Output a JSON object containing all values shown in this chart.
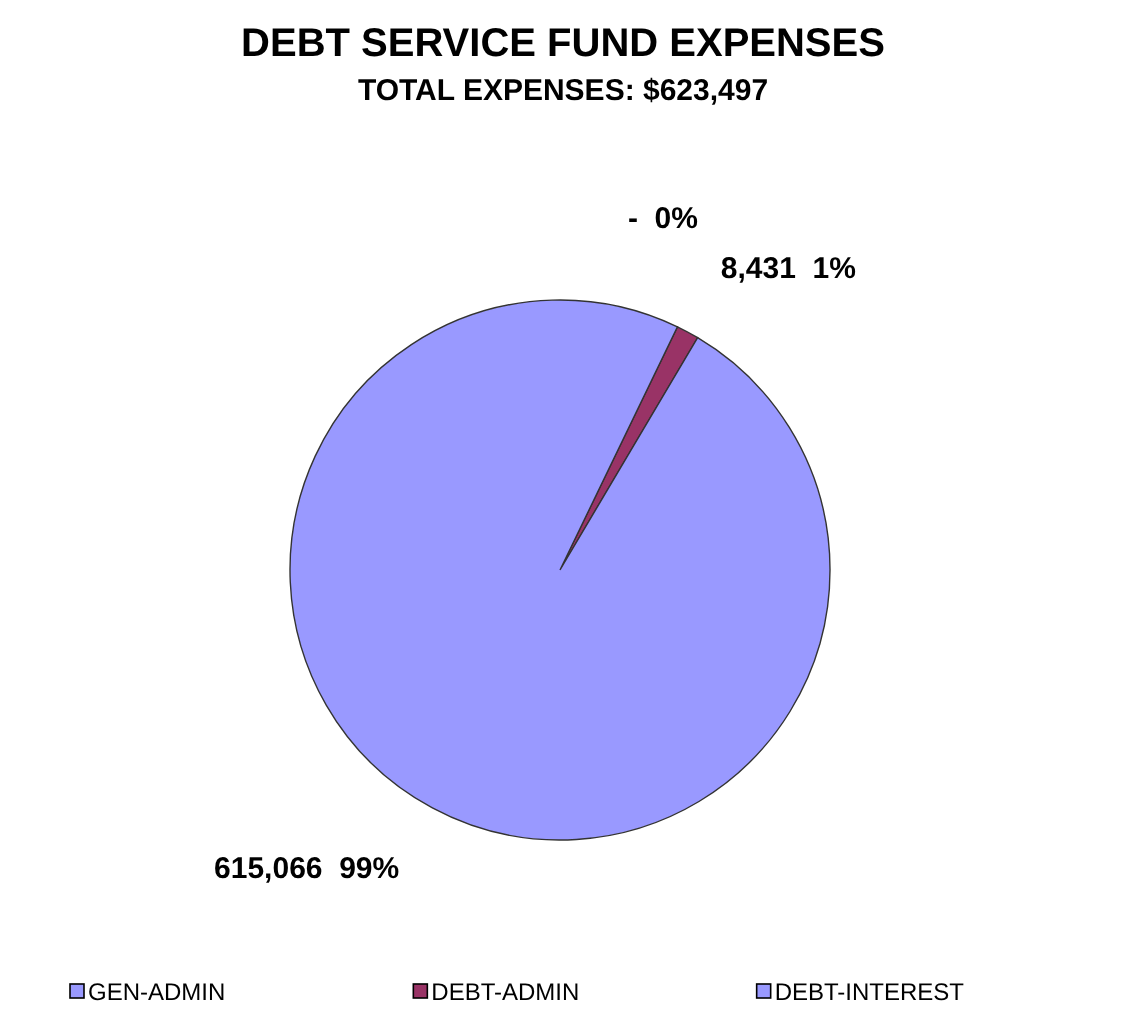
{
  "chart_data": {
    "type": "pie",
    "title": "DEBT SERVICE FUND EXPENSES",
    "subtitle": "TOTAL EXPENSES: $623,497",
    "categories": [
      "GEN-ADMIN",
      "DEBT-ADMIN",
      "DEBT-INTEREST"
    ],
    "values": [
      0,
      8431,
      615066
    ],
    "colors": [
      "#9999ff",
      "#993366",
      "#9999ff"
    ],
    "value_labels": [
      "-  0%",
      "8,431  1%",
      "615,066  99%"
    ],
    "legend": "bottom"
  }
}
